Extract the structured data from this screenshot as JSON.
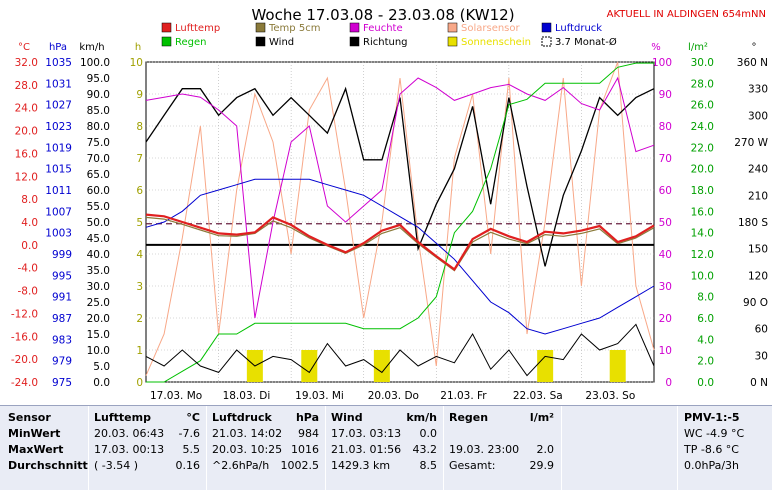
{
  "header": {
    "title": "Woche 17.03.08 - 23.03.08 (KW12)",
    "live_notice": "AKTUELL IN ALDINGEN 654mNN"
  },
  "legend": [
    {
      "label": "Lufttemp",
      "color": "#e02020",
      "kind": "box"
    },
    {
      "label": "Temp 5cm",
      "color": "#8a7a3a",
      "kind": "box"
    },
    {
      "label": "Feuchte",
      "color": "#d000d0",
      "kind": "box"
    },
    {
      "label": "Solarsensor",
      "color": "#f8a888",
      "kind": "box"
    },
    {
      "label": "Luftdruck",
      "color": "#0000d0",
      "kind": "box"
    },
    {
      "label": "Regen",
      "color": "#00c000",
      "kind": "box"
    },
    {
      "label": "Wind",
      "color": "#000000",
      "kind": "box"
    },
    {
      "label": "Richtung",
      "color": "#000000",
      "kind": "box"
    },
    {
      "label": "Sonnenschein",
      "color": "#e8e000",
      "kind": "box"
    },
    {
      "label": "3.7 Monat-Ø",
      "color": "#000000",
      "kind": "dashed"
    }
  ],
  "axis_units": {
    "temp": "°C",
    "pressure": "hPa",
    "wind": "km/h",
    "hours": "h",
    "humidity": "%",
    "rain": "l/m²",
    "direction": "°"
  },
  "chart_data": {
    "type": "line",
    "x_labels": [
      "17.03. Mo",
      "18.03. Di",
      "19.03. Mi",
      "20.03. Do",
      "21.03. Fr",
      "22.03. Sa",
      "23.03. So"
    ],
    "axes": {
      "temp": {
        "color": "#e02020",
        "ticks": [
          "32.0",
          "28.0",
          "24.0",
          "20.0",
          "16.0",
          "12.0",
          "8.0",
          "4.0",
          "0.0",
          "-4.0",
          "-8.0",
          "-12.0",
          "-16.0",
          "-20.0",
          "-24.0"
        ],
        "range": [
          -24,
          32
        ]
      },
      "pressure": {
        "color": "#0000d0",
        "ticks": [
          "1035",
          "1031",
          "1027",
          "1023",
          "1019",
          "1015",
          "1011",
          "1007",
          "1003",
          "999",
          "995",
          "991",
          "987",
          "983",
          "979",
          "975"
        ],
        "range": [
          975,
          1035
        ]
      },
      "wind": {
        "color": "#000000",
        "ticks": [
          "100.0",
          "95.0",
          "90.0",
          "85.0",
          "80.0",
          "75.0",
          "70.0",
          "65.0",
          "60.0",
          "55.0",
          "50.0",
          "45.0",
          "40.0",
          "35.0",
          "30.0",
          "25.0",
          "20.0",
          "15.0",
          "10.0",
          "5.0",
          "0.0"
        ],
        "range": [
          0,
          100
        ]
      },
      "hours": {
        "color": "#a0a000",
        "ticks": [
          "10",
          "9",
          "8",
          "7",
          "6",
          "5",
          "4",
          "3",
          "2",
          "1",
          "0"
        ],
        "range": [
          0,
          10
        ]
      },
      "humidity": {
        "color": "#d000d0",
        "ticks": [
          "100",
          "90",
          "80",
          "70",
          "60",
          "50",
          "40",
          "30",
          "20",
          "10",
          "0"
        ],
        "range": [
          0,
          100
        ]
      },
      "rain": {
        "color": "#00a000",
        "ticks": [
          "30.0",
          "28.0",
          "26.0",
          "24.0",
          "22.0",
          "20.0",
          "18.0",
          "16.0",
          "14.0",
          "12.0",
          "10.0",
          "8.0",
          "6.0",
          "4.0",
          "2.0",
          "0.0"
        ],
        "range": [
          0,
          30
        ]
      },
      "direction": {
        "color": "#000000",
        "ticks": [
          "360 N",
          "330",
          "300",
          "270 W",
          "240",
          "210",
          "180 S",
          "150",
          "120",
          "90 O",
          "60",
          "30",
          "0 N"
        ],
        "range": [
          0,
          360
        ]
      }
    },
    "monthly_average_temp": 3.7,
    "x": [
      0,
      0.25,
      0.5,
      0.75,
      1,
      1.25,
      1.5,
      1.75,
      2,
      2.25,
      2.5,
      2.75,
      3,
      3.25,
      3.5,
      3.75,
      4,
      4.25,
      4.5,
      4.75,
      5,
      5.25,
      5.5,
      5.75,
      6,
      6.25,
      6.5,
      6.75,
      7
    ],
    "series": [
      {
        "name": "Lufttemp",
        "axis": "temp",
        "color": "#e02020",
        "values": [
          5.3,
          5.0,
          4.0,
          3.0,
          2.0,
          1.8,
          2.2,
          4.8,
          3.5,
          1.5,
          0.0,
          -1.3,
          0.3,
          2.5,
          3.5,
          0.5,
          -2.0,
          -4.3,
          1.0,
          2.8,
          1.5,
          0.5,
          2.3,
          2.0,
          2.5,
          3.3,
          0.5,
          1.5,
          3.4
        ]
      },
      {
        "name": "Temp 5cm",
        "axis": "temp",
        "color": "#8a7a3a",
        "values": [
          4.8,
          4.5,
          3.6,
          2.6,
          1.6,
          1.5,
          2.0,
          4.2,
          3.0,
          1.2,
          -0.2,
          -1.5,
          0.0,
          2.0,
          3.0,
          0.2,
          -2.2,
          -4.5,
          0.5,
          2.2,
          1.0,
          0.2,
          1.8,
          1.5,
          2.0,
          2.8,
          0.2,
          1.2,
          3.0
        ]
      },
      {
        "name": "Feuchte",
        "axis": "humidity",
        "color": "#d000d0",
        "values": [
          88,
          89,
          90,
          89,
          85,
          80,
          20,
          50,
          75,
          80,
          55,
          50,
          55,
          60,
          90,
          95,
          92,
          88,
          90,
          92,
          93,
          90,
          88,
          92,
          87,
          85,
          95,
          72,
          74
        ]
      },
      {
        "name": "Luftdruck",
        "axis": "pressure",
        "color": "#0000d0",
        "values": [
          1004,
          1005,
          1007,
          1010,
          1011,
          1012,
          1013,
          1013,
          1013,
          1013,
          1012,
          1011,
          1010,
          1008,
          1006,
          1004,
          1001,
          998,
          994,
          990,
          988,
          985,
          984,
          985,
          986,
          987,
          989,
          991,
          993
        ]
      },
      {
        "name": "Regen",
        "axis": "rain",
        "color": "#00c000",
        "values": [
          0.0,
          0.0,
          1.0,
          2.0,
          4.5,
          4.5,
          5.5,
          5.5,
          5.5,
          5.5,
          5.5,
          5.5,
          5.0,
          5.0,
          5.0,
          6.0,
          8.0,
          14.0,
          16.0,
          20.0,
          26.0,
          26.5,
          28.0,
          28.0,
          28.0,
          28.0,
          29.5,
          29.9,
          29.9
        ]
      },
      {
        "name": "Wind",
        "axis": "wind",
        "color": "#000000",
        "values": [
          8,
          5,
          10,
          5,
          3,
          10,
          5,
          8,
          7,
          3,
          12,
          5,
          7,
          3,
          10,
          5,
          8,
          6,
          15,
          4,
          10,
          2,
          8,
          7,
          15,
          10,
          12,
          18,
          5
        ]
      },
      {
        "name": "Richtung",
        "axis": "direction",
        "color": "#000000",
        "values": [
          270,
          300,
          330,
          330,
          300,
          320,
          330,
          300,
          320,
          300,
          280,
          330,
          250,
          250,
          320,
          150,
          200,
          240,
          310,
          200,
          320,
          220,
          130,
          210,
          260,
          320,
          300,
          320,
          330
        ]
      },
      {
        "name": "Solarsensor",
        "axis": "humidity",
        "color": "#f8a888",
        "values": [
          2,
          15,
          45,
          80,
          15,
          60,
          90,
          75,
          40,
          85,
          95,
          60,
          20,
          50,
          95,
          45,
          5,
          70,
          90,
          40,
          95,
          15,
          50,
          95,
          30,
          85,
          100,
          30,
          10
        ]
      },
      {
        "name": "Sonnenschein",
        "axis": "hours",
        "color": "#e8e000",
        "values": [
          0,
          0,
          0,
          0,
          0,
          0,
          1,
          0,
          0,
          1,
          0,
          0,
          0,
          1,
          0,
          0,
          0,
          0,
          0,
          0,
          0,
          0,
          1,
          0,
          0,
          0,
          1,
          0,
          0
        ]
      }
    ]
  },
  "table": {
    "columns": [
      {
        "header": "Sensor",
        "unit": "",
        "rows": [
          "MinWert",
          "MaxWert",
          "Durchschnitt"
        ]
      },
      {
        "header": "Lufttemp",
        "unit": "°C",
        "rows": [
          [
            "20.03.  06:43",
            "-7.6"
          ],
          [
            "17.03.  00:13",
            "5.5"
          ],
          [
            "( -3.54 )",
            "0.16"
          ]
        ]
      },
      {
        "header": "Luftdruck",
        "unit": "hPa",
        "rows": [
          [
            "21.03.  14:02",
            "984"
          ],
          [
            "20.03.  10:25",
            "1016"
          ],
          [
            "^2.6hPa/h",
            "1002.5"
          ]
        ]
      },
      {
        "header": "Wind",
        "unit": "km/h",
        "rows": [
          [
            "17.03.  03:13",
            "0.0"
          ],
          [
            "21.03.  01:56",
            "43.2"
          ],
          [
            "1429.3 km",
            "8.5"
          ]
        ]
      },
      {
        "header": "Regen",
        "unit": "l/m²",
        "rows": [
          [
            "",
            ""
          ],
          [
            "19.03.  23:00",
            "2.0"
          ],
          [
            "Gesamt:",
            "29.9"
          ]
        ]
      },
      {
        "header": "PMV-1:-5",
        "unit": "",
        "rows": [
          "WC -4.9 °C",
          "TP -8.6 °C",
          "0.0hPa/3h"
        ]
      }
    ]
  }
}
